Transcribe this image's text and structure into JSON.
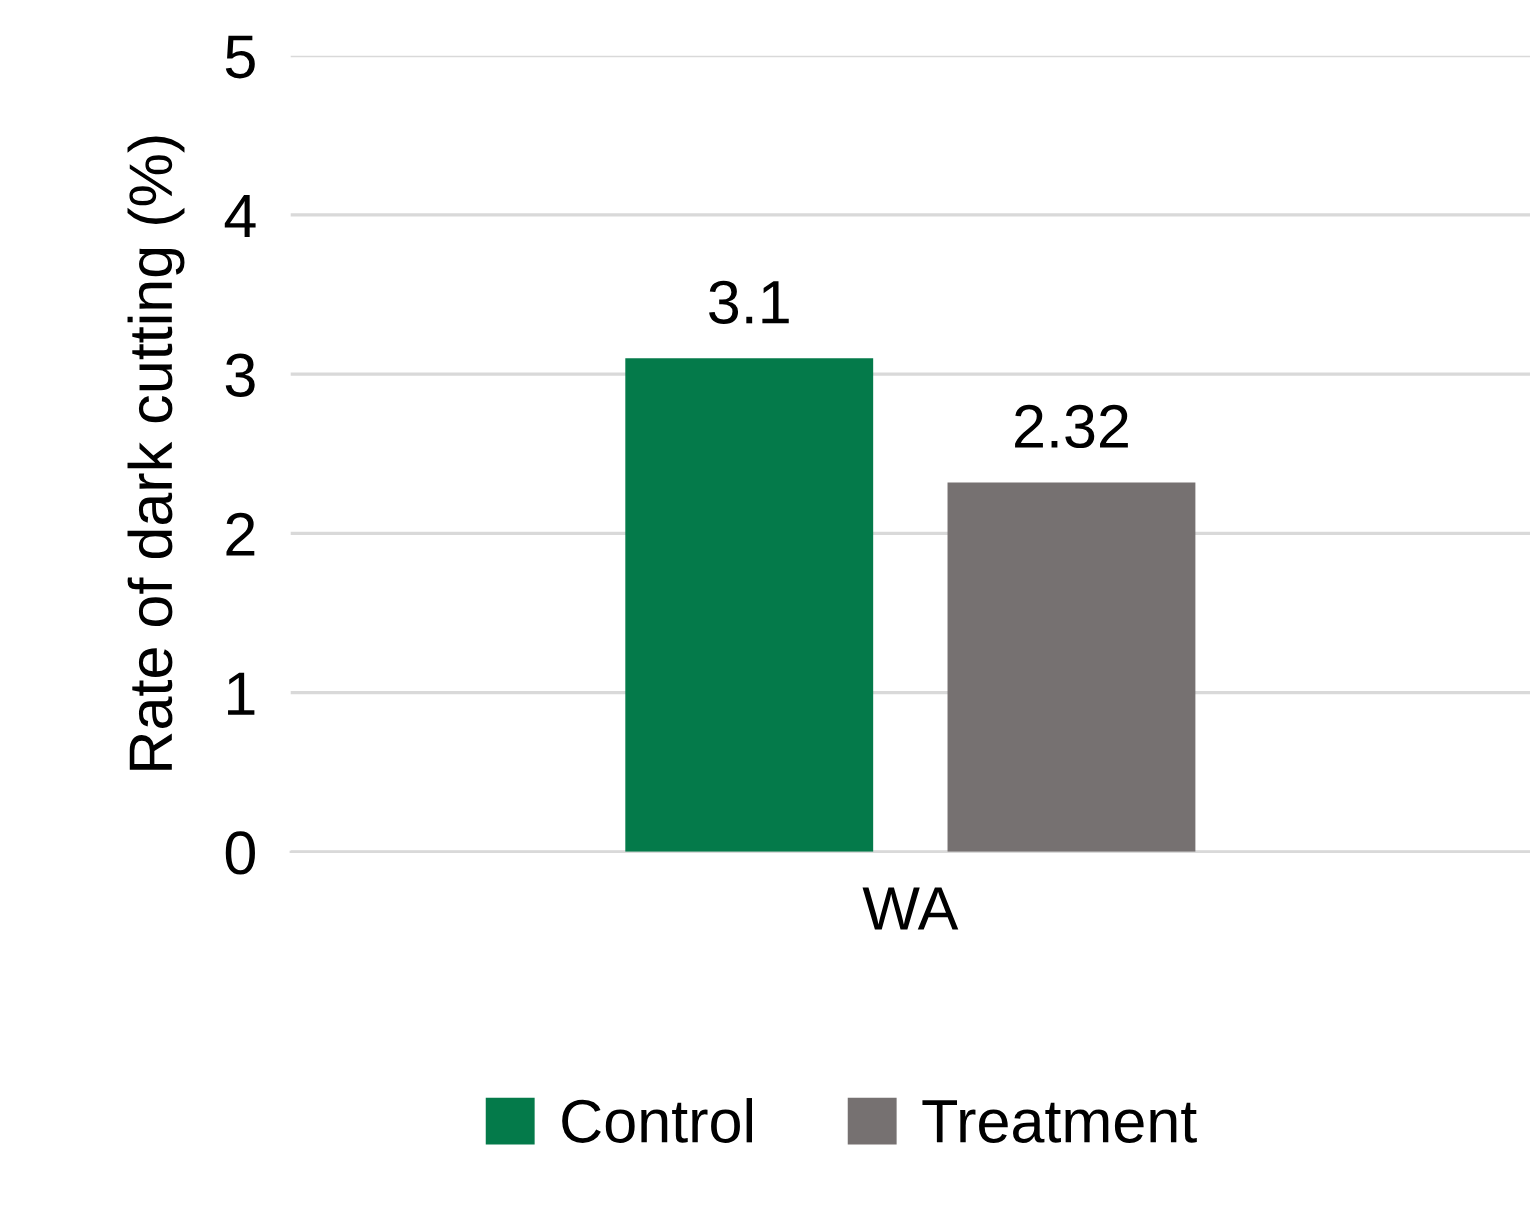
{
  "chart_data": {
    "type": "bar",
    "ylabel": "Rate of dark cutting (%)",
    "categories": [
      "WA"
    ],
    "series": [
      {
        "name": "Control",
        "color": "#047a4a",
        "values": [
          3.1
        ]
      },
      {
        "name": "Treatment",
        "color": "#767171",
        "values": [
          2.32
        ]
      }
    ],
    "ylim": [
      0,
      5
    ],
    "yticks": [
      0,
      1,
      2,
      3,
      4,
      5
    ],
    "grid": "y",
    "legend": "bottom",
    "data_labels": true
  }
}
